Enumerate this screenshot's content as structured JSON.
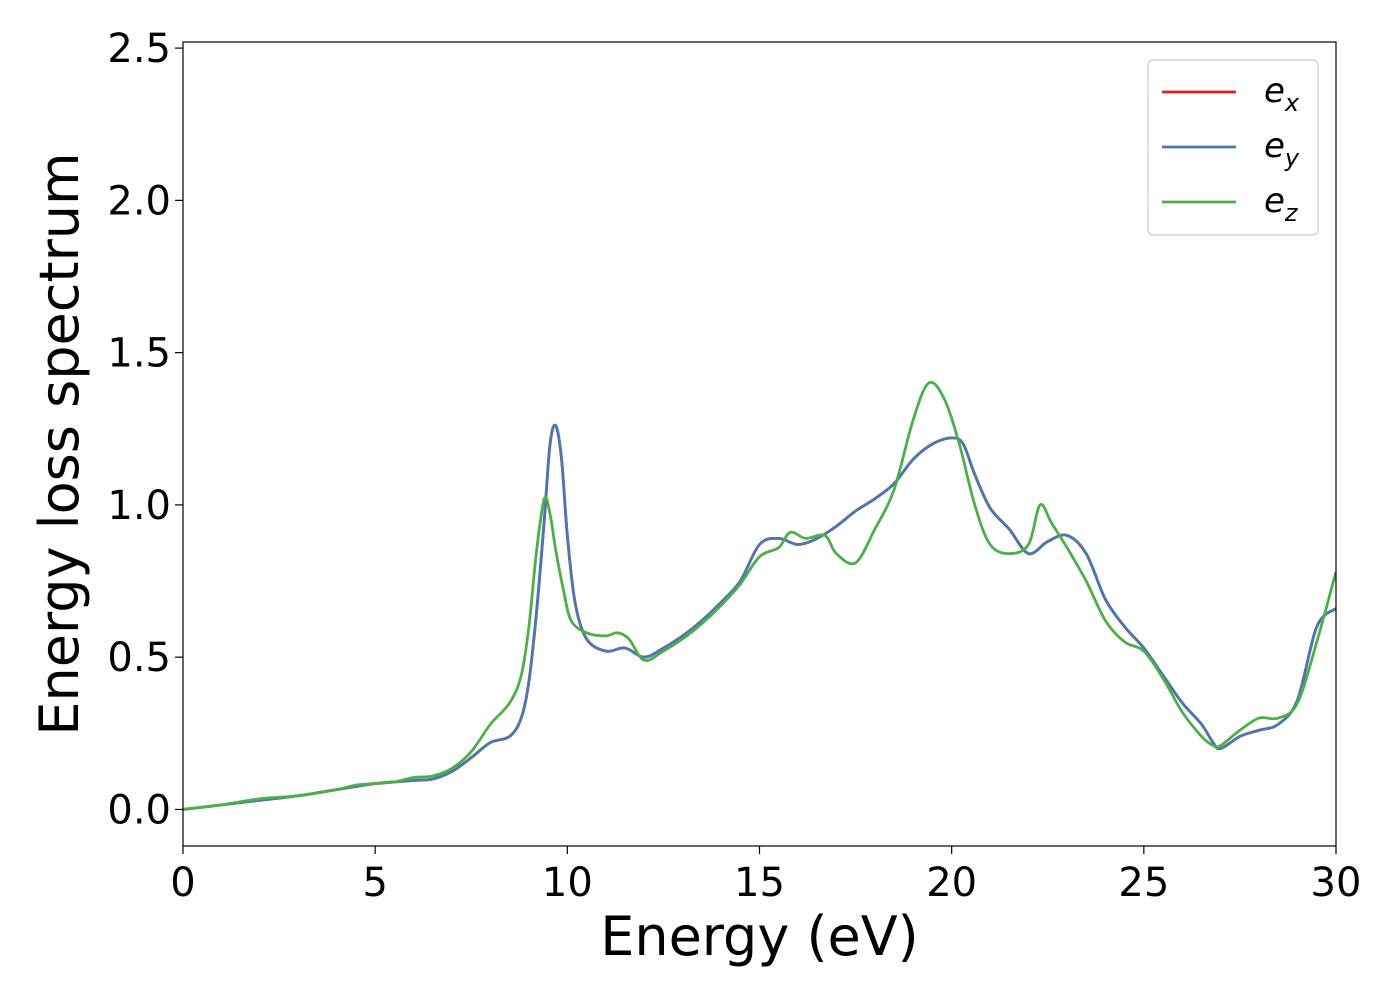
{
  "chart_data": {
    "type": "line",
    "xlabel": "Energy (eV)",
    "ylabel": "Energy loss spectrum",
    "xlim": [
      0,
      30
    ],
    "ylim": [
      -0.12,
      2.52
    ],
    "xticks": [
      0,
      5,
      10,
      15,
      20,
      25,
      30
    ],
    "xtick_labels": [
      "0",
      "5",
      "10",
      "15",
      "20",
      "25",
      "30"
    ],
    "yticks": [
      0.0,
      0.5,
      1.0,
      1.5,
      2.0,
      2.5
    ],
    "ytick_labels": [
      "0.0",
      "0.5",
      "1.0",
      "1.5",
      "2.0",
      "2.5"
    ],
    "grid": false,
    "legend_position": "top-right",
    "series": [
      {
        "name": "e",
        "subscript": "x",
        "color": "#e41a1c",
        "x": [
          0,
          1,
          2,
          3,
          4,
          5,
          6,
          6.5,
          7,
          7.5,
          8,
          8.5,
          8.8,
          9.0,
          9.2,
          9.4,
          9.55,
          9.7,
          9.85,
          10.0,
          10.2,
          10.5,
          11.0,
          11.5,
          12.0,
          12.5,
          13.0,
          13.5,
          14.0,
          14.5,
          15.0,
          15.5,
          16.0,
          16.5,
          17.0,
          17.5,
          18.0,
          18.5,
          19.0,
          19.5,
          20.0,
          20.3,
          20.6,
          21.0,
          21.5,
          22.0,
          22.5,
          23.0,
          23.5,
          24.0,
          24.5,
          25.0,
          25.5,
          26.0,
          26.5,
          26.8,
          27.0,
          27.5,
          28.0,
          28.5,
          29.0,
          29.5,
          30.0
        ],
        "y": [
          0.0,
          0.015,
          0.03,
          0.045,
          0.065,
          0.085,
          0.095,
          0.1,
          0.125,
          0.17,
          0.22,
          0.24,
          0.3,
          0.42,
          0.65,
          0.95,
          1.2,
          1.26,
          1.15,
          0.9,
          0.68,
          0.56,
          0.52,
          0.53,
          0.5,
          0.53,
          0.57,
          0.62,
          0.68,
          0.75,
          0.87,
          0.89,
          0.87,
          0.89,
          0.93,
          0.98,
          1.02,
          1.07,
          1.15,
          1.2,
          1.22,
          1.2,
          1.1,
          0.99,
          0.92,
          0.84,
          0.88,
          0.9,
          0.84,
          0.69,
          0.6,
          0.53,
          0.44,
          0.35,
          0.28,
          0.22,
          0.2,
          0.24,
          0.26,
          0.28,
          0.36,
          0.6,
          0.66
        ]
      },
      {
        "name": "e",
        "subscript": "y",
        "color": "#4a78b0",
        "x": [
          0,
          1,
          2,
          3,
          4,
          5,
          6,
          6.5,
          7,
          7.5,
          8,
          8.5,
          8.8,
          9.0,
          9.2,
          9.4,
          9.55,
          9.7,
          9.85,
          10.0,
          10.2,
          10.5,
          11.0,
          11.5,
          12.0,
          12.5,
          13.0,
          13.5,
          14.0,
          14.5,
          15.0,
          15.5,
          16.0,
          16.5,
          17.0,
          17.5,
          18.0,
          18.5,
          19.0,
          19.5,
          20.0,
          20.3,
          20.6,
          21.0,
          21.5,
          22.0,
          22.5,
          23.0,
          23.5,
          24.0,
          24.5,
          25.0,
          25.5,
          26.0,
          26.5,
          26.8,
          27.0,
          27.5,
          28.0,
          28.5,
          29.0,
          29.5,
          30.0
        ],
        "y": [
          0.0,
          0.015,
          0.03,
          0.045,
          0.065,
          0.085,
          0.095,
          0.1,
          0.125,
          0.17,
          0.22,
          0.24,
          0.3,
          0.42,
          0.65,
          0.95,
          1.2,
          1.26,
          1.15,
          0.9,
          0.68,
          0.56,
          0.52,
          0.53,
          0.5,
          0.53,
          0.57,
          0.62,
          0.68,
          0.75,
          0.87,
          0.89,
          0.87,
          0.89,
          0.93,
          0.98,
          1.02,
          1.07,
          1.15,
          1.2,
          1.22,
          1.2,
          1.1,
          0.99,
          0.92,
          0.84,
          0.88,
          0.9,
          0.84,
          0.69,
          0.6,
          0.53,
          0.44,
          0.35,
          0.28,
          0.22,
          0.2,
          0.24,
          0.26,
          0.28,
          0.36,
          0.6,
          0.66
        ]
      },
      {
        "name": "e",
        "subscript": "z",
        "color": "#4daf4a",
        "x": [
          0,
          1,
          2,
          3,
          4,
          4.5,
          5,
          5.5,
          6,
          6.5,
          7,
          7.5,
          8,
          8.5,
          8.8,
          9.0,
          9.2,
          9.4,
          9.55,
          9.7,
          9.9,
          10.1,
          10.5,
          11.0,
          11.3,
          11.6,
          12.0,
          12.5,
          13.0,
          13.5,
          14.0,
          14.5,
          15.0,
          15.5,
          15.8,
          16.2,
          16.7,
          17.0,
          17.5,
          18.0,
          18.5,
          19.0,
          19.4,
          19.8,
          20.2,
          20.6,
          21.0,
          21.5,
          22.0,
          22.3,
          22.6,
          23.0,
          23.5,
          24.0,
          24.5,
          25.0,
          25.5,
          26.0,
          26.5,
          26.8,
          27.0,
          27.5,
          28.0,
          28.5,
          29.0,
          29.5,
          30.0
        ],
        "y": [
          0.0,
          0.015,
          0.035,
          0.045,
          0.065,
          0.08,
          0.085,
          0.09,
          0.105,
          0.11,
          0.135,
          0.19,
          0.28,
          0.35,
          0.44,
          0.6,
          0.85,
          1.02,
          0.97,
          0.85,
          0.72,
          0.62,
          0.58,
          0.57,
          0.58,
          0.56,
          0.49,
          0.52,
          0.56,
          0.61,
          0.67,
          0.74,
          0.83,
          0.86,
          0.91,
          0.89,
          0.9,
          0.84,
          0.81,
          0.92,
          1.05,
          1.28,
          1.4,
          1.35,
          1.2,
          1.0,
          0.87,
          0.84,
          0.87,
          1.0,
          0.94,
          0.86,
          0.75,
          0.62,
          0.55,
          0.52,
          0.43,
          0.32,
          0.24,
          0.21,
          0.21,
          0.26,
          0.3,
          0.3,
          0.35,
          0.55,
          0.78
        ]
      }
    ]
  }
}
